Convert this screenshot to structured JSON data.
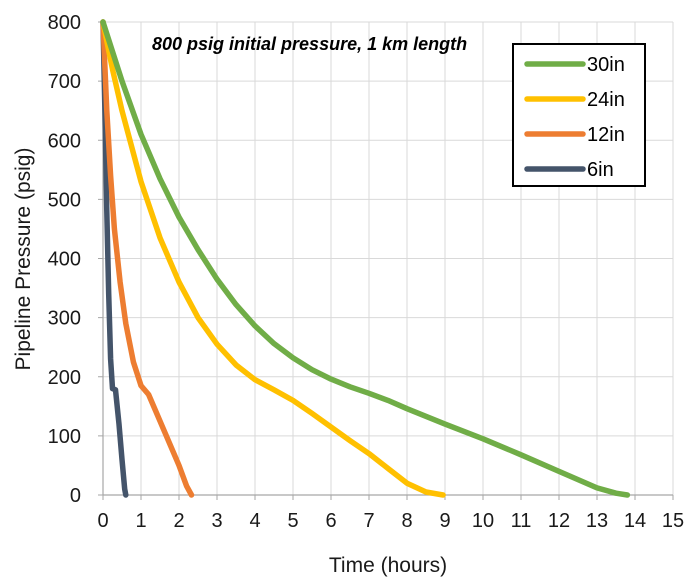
{
  "chart_data": {
    "type": "line",
    "title": "",
    "annotation": "800 psig initial pressure, 1 km length",
    "xlabel": "Time (hours)",
    "ylabel": "Pipeline Pressure (psig)",
    "xlim": [
      0,
      15
    ],
    "ylim": [
      0,
      800
    ],
    "xticks": [
      0,
      1,
      2,
      3,
      4,
      5,
      6,
      7,
      8,
      9,
      10,
      11,
      12,
      13,
      14,
      15
    ],
    "yticks": [
      0,
      100,
      200,
      300,
      400,
      500,
      600,
      700,
      800
    ],
    "grid": true,
    "legend_position": "top-right",
    "series": [
      {
        "name": "30in",
        "color": "#70AD47",
        "points": [
          [
            0,
            800
          ],
          [
            0.5,
            700
          ],
          [
            1,
            610
          ],
          [
            1.5,
            535
          ],
          [
            2,
            470
          ],
          [
            2.5,
            415
          ],
          [
            3,
            365
          ],
          [
            3.5,
            322
          ],
          [
            4,
            286
          ],
          [
            4.5,
            256
          ],
          [
            5,
            232
          ],
          [
            5.5,
            212
          ],
          [
            6,
            196
          ],
          [
            6.5,
            183
          ],
          [
            7,
            172
          ],
          [
            7.5,
            160
          ],
          [
            8,
            146
          ],
          [
            9,
            120
          ],
          [
            10,
            95
          ],
          [
            11,
            68
          ],
          [
            12,
            40
          ],
          [
            13,
            12
          ],
          [
            13.5,
            3
          ],
          [
            13.8,
            0
          ]
        ]
      },
      {
        "name": "24in",
        "color": "#FFC000",
        "points": [
          [
            0,
            800
          ],
          [
            0.25,
            720
          ],
          [
            0.5,
            650
          ],
          [
            1,
            530
          ],
          [
            1.5,
            435
          ],
          [
            2,
            360
          ],
          [
            2.5,
            300
          ],
          [
            3,
            255
          ],
          [
            3.5,
            220
          ],
          [
            4,
            195
          ],
          [
            4.5,
            178
          ],
          [
            5,
            160
          ],
          [
            5.5,
            138
          ],
          [
            6,
            115
          ],
          [
            6.5,
            92
          ],
          [
            7,
            70
          ],
          [
            7.5,
            45
          ],
          [
            8,
            20
          ],
          [
            8.5,
            5
          ],
          [
            8.95,
            0
          ]
        ]
      },
      {
        "name": "12in",
        "color": "#ED7D31",
        "points": [
          [
            0,
            800
          ],
          [
            0.1,
            650
          ],
          [
            0.2,
            540
          ],
          [
            0.3,
            450
          ],
          [
            0.45,
            360
          ],
          [
            0.6,
            290
          ],
          [
            0.8,
            225
          ],
          [
            1,
            185
          ],
          [
            1.2,
            170
          ],
          [
            1.5,
            125
          ],
          [
            1.8,
            80
          ],
          [
            2,
            50
          ],
          [
            2.2,
            15
          ],
          [
            2.33,
            0
          ]
        ]
      },
      {
        "name": "6in",
        "color": "#44546A",
        "points": [
          [
            0,
            800
          ],
          [
            0.05,
            650
          ],
          [
            0.1,
            480
          ],
          [
            0.15,
            340
          ],
          [
            0.2,
            230
          ],
          [
            0.25,
            180
          ],
          [
            0.33,
            178
          ],
          [
            0.42,
            120
          ],
          [
            0.5,
            60
          ],
          [
            0.57,
            10
          ],
          [
            0.6,
            0
          ]
        ]
      }
    ]
  }
}
